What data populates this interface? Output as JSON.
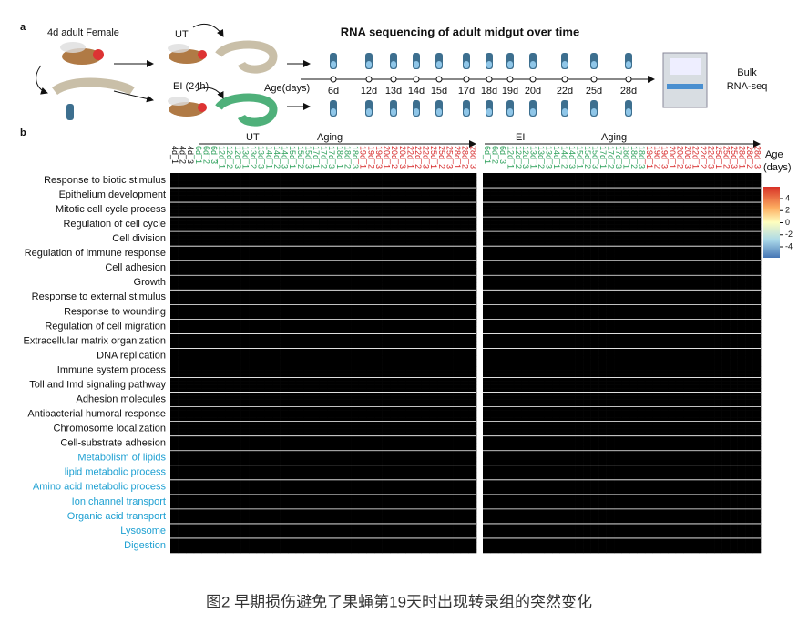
{
  "panel_a": {
    "label": "a",
    "fly_label": "4d adult Female",
    "ut_label": "UT",
    "ei_label": "EI (24h)",
    "age_label": "Age(days)",
    "title": "RNA sequencing of adult midgut over time",
    "days": [
      "6d",
      "12d",
      "13d",
      "14d",
      "15d",
      "17d",
      "18d",
      "19d",
      "20d",
      "22d",
      "25d",
      "28d"
    ],
    "bulk_lines": [
      "Bulk",
      "RNA-seq"
    ]
  },
  "panel_b": {
    "label": "b",
    "left_treatment": "UT",
    "left_aging": "Aging",
    "right_treatment": "EI",
    "right_aging": "Aging",
    "age_lines": [
      "Age",
      "(days)"
    ],
    "early_color": "#2ca05a",
    "late_color": "#d62728",
    "left_columns_baseline": [
      "4d_1",
      "4d_2",
      "4d_3"
    ],
    "left_columns_early": [
      "6d_1",
      "6d_2",
      "6d_3",
      "12d_1",
      "12d_2",
      "12d_3",
      "13d_1",
      "13d_2",
      "13d_3",
      "14d_1",
      "14d_2",
      "14d_3",
      "15d_1",
      "15d_2",
      "15d_3",
      "17d_1",
      "17d_2",
      "17d_3",
      "18d_1",
      "18d_2",
      "18d_3"
    ],
    "left_columns_late": [
      "19d_1",
      "19d_2",
      "19d_3",
      "20d_1",
      "20d_2",
      "20d_3",
      "22d_1",
      "22d_2",
      "22d_3",
      "25d_1",
      "25d_2",
      "25d_3",
      "28d_1",
      "28d_2",
      "28d_3"
    ],
    "right_columns_early": [
      "6d_1",
      "6d_2",
      "6d_3",
      "12d_1",
      "12d_2",
      "12d_3",
      "13d_1",
      "13d_2",
      "13d_3",
      "14d_1",
      "14d_2",
      "14d_3",
      "15d_1",
      "15d_2",
      "15d_3",
      "17d_1",
      "17d_2",
      "17d_3",
      "18d_1",
      "18d_2",
      "18d_3"
    ],
    "right_columns_late": [
      "19d_1",
      "19d_2",
      "19d_3",
      "20d_1",
      "20d_2",
      "20d_3",
      "22d_1",
      "22d_2",
      "22d_3",
      "25d_1",
      "25d_2",
      "25d_3",
      "28d_1",
      "28d_2",
      "28d_3"
    ],
    "up_terms": [
      "Response to biotic stimulus",
      "Epithelium development",
      "Mitotic cell cycle process",
      "Regulation of cell cycle",
      "Cell division",
      "Regulation of immune response",
      "Cell adhesion",
      "Growth",
      "Response to external stimulus",
      "Response to wounding",
      "Regulation of cell migration",
      "Extracellular matrix organization",
      "DNA replication",
      "Immune system process",
      "Toll and Imd signaling pathway",
      "Adhesion molecules",
      "Antibacterial humoral response",
      "Chromosome localization",
      "Cell-substrate adhesion"
    ],
    "down_terms": [
      "Metabolism of lipids",
      "lipid metabolic process",
      "Amino acid metabolic process",
      "Ion channel transport",
      "Organic acid transport",
      "Lysosome",
      "Digestion"
    ],
    "down_color": "#1ea0d2",
    "colorbar_ticks": [
      4,
      2,
      0,
      -2,
      -4
    ]
  },
  "caption": "图2 早期损伤避免了果蝇第19天时出现转录组的突然变化"
}
